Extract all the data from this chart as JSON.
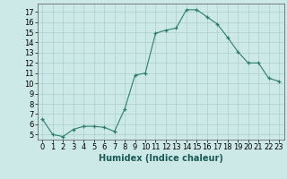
{
  "x": [
    0,
    1,
    2,
    3,
    4,
    5,
    6,
    7,
    8,
    9,
    10,
    11,
    12,
    13,
    14,
    15,
    16,
    17,
    18,
    19,
    20,
    21,
    22,
    23
  ],
  "y": [
    6.5,
    5.0,
    4.8,
    5.5,
    5.8,
    5.8,
    5.7,
    5.3,
    7.5,
    10.8,
    11.0,
    14.9,
    15.2,
    15.4,
    17.2,
    17.2,
    16.5,
    15.8,
    14.5,
    13.1,
    12.0,
    12.0,
    10.5,
    10.2
  ],
  "xlabel": "Humidex (Indice chaleur)",
  "ylim": [
    4.5,
    17.8
  ],
  "xlim": [
    -0.5,
    23.5
  ],
  "yticks": [
    5,
    6,
    7,
    8,
    9,
    10,
    11,
    12,
    13,
    14,
    15,
    16,
    17
  ],
  "xticks": [
    0,
    1,
    2,
    3,
    4,
    5,
    6,
    7,
    8,
    9,
    10,
    11,
    12,
    13,
    14,
    15,
    16,
    17,
    18,
    19,
    20,
    21,
    22,
    23
  ],
  "line_color": "#2e7d6e",
  "marker": "+",
  "bg_color": "#cce9e7",
  "grid_color": "#aacfcd",
  "label_fontsize": 7,
  "tick_fontsize": 6
}
